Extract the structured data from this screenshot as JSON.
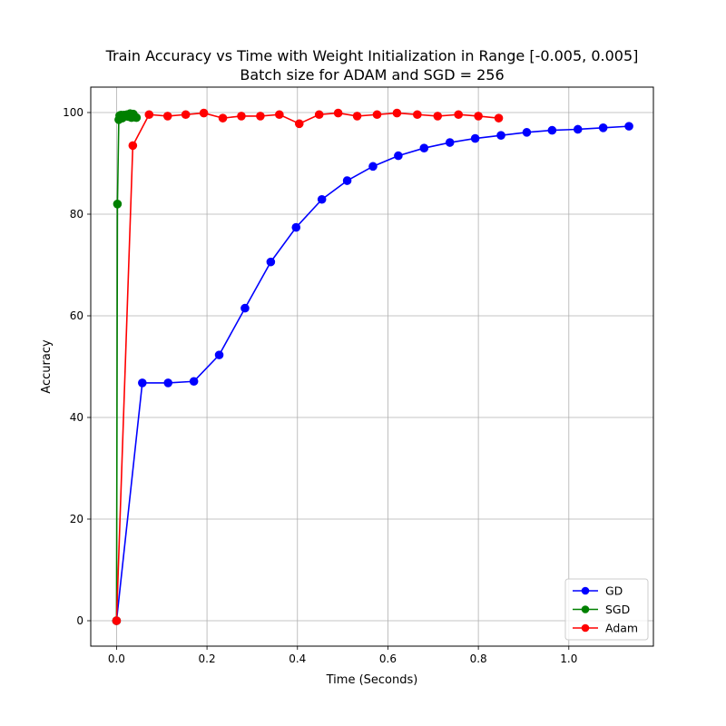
{
  "chart_data": {
    "type": "line",
    "title": "Train Accuracy vs Time with Weight Initialization in Range [-0.005, 0.005]",
    "subtitle": "Batch size for ADAM and SGD = 256",
    "xlabel": "Time (Seconds)",
    "ylabel": "Accuracy",
    "xlim": [
      -0.057,
      1.187
    ],
    "ylim": [
      -5,
      105
    ],
    "xticks": [
      0.0,
      0.2,
      0.4,
      0.6,
      0.8,
      1.0
    ],
    "xtick_labels": [
      "0.0",
      "0.2",
      "0.4",
      "0.6",
      "0.8",
      "1.0"
    ],
    "yticks": [
      0,
      20,
      40,
      60,
      80,
      100
    ],
    "ytick_labels": [
      "0",
      "20",
      "40",
      "60",
      "80",
      "100"
    ],
    "grid": true,
    "legend_position": "lower-right",
    "series": [
      {
        "name": "GD",
        "color": "#0000ff",
        "x": [
          0.0,
          0.057,
          0.114,
          0.171,
          0.227,
          0.284,
          0.341,
          0.397,
          0.454,
          0.51,
          0.567,
          0.623,
          0.68,
          0.737,
          0.793,
          0.85,
          0.907,
          0.963,
          1.02,
          1.076,
          1.133
        ],
        "y": [
          0.0,
          46.8,
          46.8,
          47.1,
          52.3,
          61.5,
          70.6,
          77.4,
          82.9,
          86.6,
          89.4,
          91.5,
          93.0,
          94.1,
          94.9,
          95.5,
          96.1,
          96.5,
          96.7,
          97.0,
          97.3
        ]
      },
      {
        "name": "SGD",
        "color": "#008000",
        "x": [
          0.0,
          0.002,
          0.005,
          0.007,
          0.01,
          0.013,
          0.016,
          0.019,
          0.023,
          0.026,
          0.03,
          0.033,
          0.037,
          0.04,
          0.044
        ],
        "y": [
          0.0,
          82.0,
          98.6,
          99.4,
          99.5,
          98.9,
          99.5,
          99.3,
          99.6,
          99.2,
          99.8,
          99.0,
          99.7,
          99.1,
          99.0
        ]
      },
      {
        "name": "Adam",
        "color": "#ff0000",
        "x": [
          0.0,
          0.036,
          0.072,
          0.113,
          0.153,
          0.193,
          0.235,
          0.276,
          0.318,
          0.36,
          0.404,
          0.448,
          0.49,
          0.532,
          0.576,
          0.62,
          0.665,
          0.71,
          0.756,
          0.8,
          0.845
        ],
        "y": [
          0.0,
          93.5,
          99.6,
          99.3,
          99.6,
          99.9,
          98.9,
          99.3,
          99.3,
          99.6,
          97.8,
          99.6,
          99.9,
          99.3,
          99.6,
          99.9,
          99.6,
          99.3,
          99.6,
          99.3,
          98.9
        ]
      }
    ]
  }
}
